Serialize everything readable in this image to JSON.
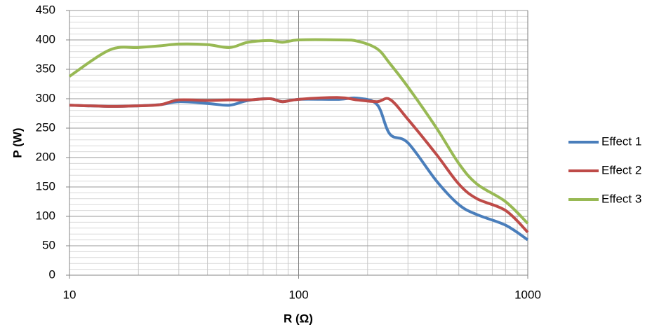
{
  "chart_data": {
    "type": "line",
    "x_label": "R (Ω)",
    "y_label": "P (W)",
    "x": [
      10,
      15,
      20,
      25,
      30,
      40,
      50,
      60,
      75,
      85,
      100,
      150,
      180,
      220,
      250,
      300,
      400,
      500,
      600,
      800,
      1000
    ],
    "series": [
      {
        "name": "Effect 1",
        "color": "#4a7ebb",
        "values": [
          289,
          287,
          288,
          290,
          295,
          292,
          289,
          297,
          300,
          295,
          299,
          299,
          301,
          290,
          240,
          225,
          160,
          120,
          103,
          85,
          60
        ]
      },
      {
        "name": "Effect 2",
        "color": "#be4b48",
        "values": [
          289,
          287,
          288,
          290,
          298,
          297,
          298,
          298,
          300,
          295,
          299,
          302,
          298,
          295,
          299,
          265,
          205,
          155,
          130,
          110,
          73
        ]
      },
      {
        "name": "Effect 3",
        "color": "#98b954",
        "values": [
          338,
          383,
          387,
          390,
          393,
          392,
          387,
          396,
          399,
          396,
          400,
          400,
          398,
          385,
          360,
          320,
          250,
          190,
          155,
          125,
          88
        ]
      }
    ],
    "xlim": [
      10,
      1000
    ],
    "xticks": [
      10,
      100,
      1000
    ],
    "xscale": "log",
    "ylim": [
      0,
      450
    ],
    "yticks": [
      0,
      50,
      100,
      150,
      200,
      250,
      300,
      350,
      400,
      450
    ],
    "grid": true,
    "legend": "right"
  }
}
